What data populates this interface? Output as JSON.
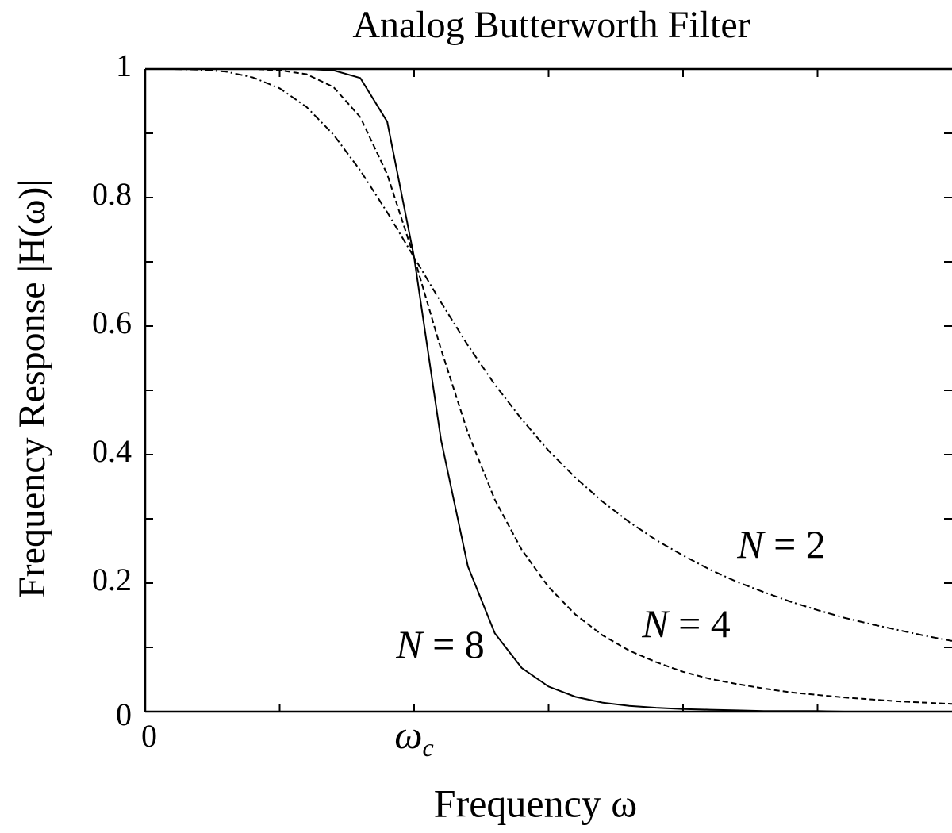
{
  "chart_data": {
    "type": "line",
    "title": "Analog Butterworth Filter",
    "xlabel": "Frequency ω",
    "ylabel": "Frequency Response |H(ω)|",
    "x": [
      0,
      0.1,
      0.2,
      0.3,
      0.4,
      0.5,
      0.6,
      0.7,
      0.8,
      0.9,
      1.0,
      1.1,
      1.2,
      1.3,
      1.4,
      1.5,
      1.6,
      1.7,
      1.8,
      1.9,
      2.0,
      2.1,
      2.2,
      2.3,
      2.4,
      2.5,
      2.6,
      2.7,
      2.8,
      2.9,
      3.0
    ],
    "series": [
      {
        "name": "N = 2",
        "color": "#000000",
        "dash": "dashdot",
        "values": [
          1,
          1.0,
          0.999,
          0.996,
          0.987,
          0.97,
          0.941,
          0.898,
          0.842,
          0.777,
          0.707,
          0.637,
          0.57,
          0.509,
          0.455,
          0.406,
          0.364,
          0.327,
          0.295,
          0.267,
          0.243,
          0.221,
          0.202,
          0.186,
          0.171,
          0.158,
          0.146,
          0.136,
          0.127,
          0.118,
          0.11
        ]
      },
      {
        "name": "N = 4",
        "color": "#000000",
        "dash": "dashed",
        "values": [
          1,
          1.0,
          1.0,
          1.0,
          1.0,
          0.998,
          0.992,
          0.972,
          0.925,
          0.836,
          0.707,
          0.564,
          0.434,
          0.33,
          0.252,
          0.194,
          0.151,
          0.119,
          0.095,
          0.077,
          0.062,
          0.051,
          0.043,
          0.036,
          0.03,
          0.026,
          0.022,
          0.019,
          0.016,
          0.014,
          0.012
        ]
      },
      {
        "name": "N = 8",
        "color": "#000000",
        "dash": "solid",
        "values": [
          1,
          1.0,
          1.0,
          1.0,
          1.0,
          1.0,
          1.0,
          0.998,
          0.986,
          0.918,
          0.707,
          0.423,
          0.226,
          0.122,
          0.068,
          0.039,
          0.023,
          0.014,
          0.009,
          0.006,
          0.004,
          0.003,
          0.002,
          0.001,
          0.001,
          0.001,
          0.0,
          0.0,
          0.0,
          0.0,
          0.0
        ]
      }
    ],
    "xlim": [
      0,
      3
    ],
    "ylim": [
      0,
      1
    ],
    "xticks": [
      0,
      {
        "value": 1,
        "label": "ωc"
      }
    ],
    "xminor_ticks": [
      0.5,
      1.5,
      2,
      2.5
    ],
    "yticks": [
      0,
      0.2,
      0.4,
      0.6,
      0.8,
      1
    ],
    "yminor_ticks": [
      0.1,
      0.3,
      0.5,
      0.7,
      0.9
    ],
    "grid": false
  }
}
